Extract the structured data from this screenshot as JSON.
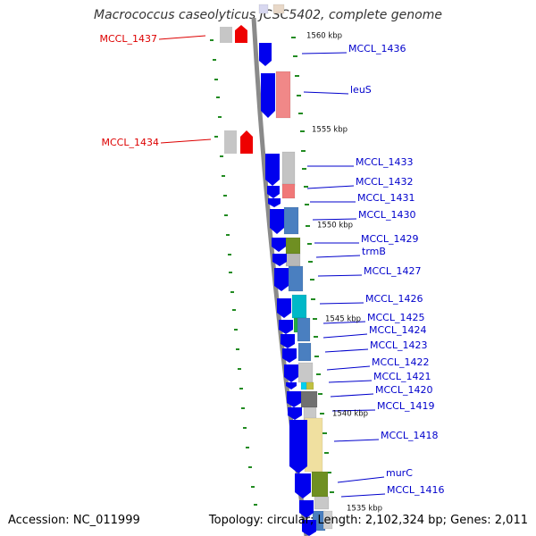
{
  "title": "Macrococcus caseolyticus JCSC5402, complete genome",
  "footer": {
    "accession": "Accession: NC_011999",
    "stats": "Topology: circular; Length: 2,102,324 bp; Genes: 2,011"
  },
  "colors": {
    "backbone": "#8a8a8a",
    "forward_gene": "#0000ee",
    "reverse_gene": "#ee0000",
    "tick": "#228b22",
    "label_forward": "#0000cc",
    "label_reverse": "#dd0000"
  },
  "kbp_marks": [
    "1560 kbp",
    "1555 kbp",
    "1550 kbp",
    "1545 kbp",
    "1540 kbp",
    "1535 kbp"
  ],
  "genes_right": [
    "MCCL_1436",
    "leuS",
    "MCCL_1433",
    "MCCL_1432",
    "MCCL_1431",
    "MCCL_1430",
    "MCCL_1429",
    "trmB",
    "MCCL_1427",
    "MCCL_1426",
    "MCCL_1425",
    "MCCL_1424",
    "MCCL_1423",
    "MCCL_1422",
    "MCCL_1421",
    "MCCL_1420",
    "MCCL_1419",
    "MCCL_1418",
    "murC",
    "MCCL_1416"
  ],
  "genes_left": [
    "MCCL_1437",
    "MCCL_1434"
  ]
}
